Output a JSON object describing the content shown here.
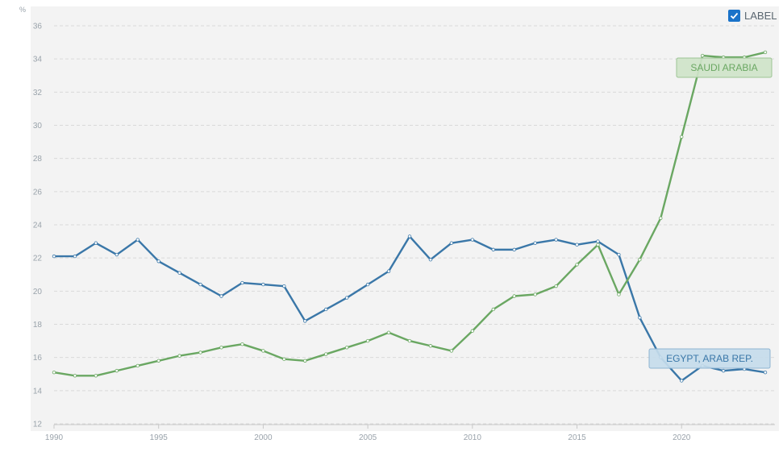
{
  "toggle": {
    "label": "LABEL",
    "checked": true
  },
  "chart_data": {
    "type": "line",
    "ylabel": "%",
    "ylim": [
      12,
      36
    ],
    "yticks": [
      12,
      14,
      16,
      18,
      20,
      22,
      24,
      26,
      28,
      30,
      32,
      34,
      36
    ],
    "xlim": [
      1990,
      2024
    ],
    "xticks": [
      1990,
      1995,
      2000,
      2005,
      2010,
      2015,
      2020
    ],
    "grid": true,
    "x": [
      1990,
      1991,
      1992,
      1993,
      1994,
      1995,
      1996,
      1997,
      1998,
      1999,
      2000,
      2001,
      2002,
      2003,
      2004,
      2005,
      2006,
      2007,
      2008,
      2009,
      2010,
      2011,
      2012,
      2013,
      2014,
      2015,
      2016,
      2017,
      2018,
      2019,
      2020,
      2021,
      2022,
      2023,
      2024
    ],
    "series": [
      {
        "name": "EGYPT, ARAB REP.",
        "color": "#3a77a8",
        "label_bg": "#c6dcec",
        "label_border": "#8fb4d2",
        "values": [
          22.1,
          22.1,
          22.9,
          22.2,
          23.1,
          21.8,
          21.1,
          20.4,
          19.7,
          20.5,
          20.4,
          20.3,
          18.2,
          18.9,
          19.6,
          20.4,
          21.2,
          23.3,
          21.9,
          22.9,
          23.1,
          22.5,
          22.5,
          22.9,
          23.1,
          22.8,
          23.0,
          22.2,
          18.4,
          16.0,
          14.6,
          15.5,
          15.2,
          15.3,
          15.1
        ]
      },
      {
        "name": "SAUDI ARABIA",
        "color": "#6aa762",
        "label_bg": "#cfe4c9",
        "label_border": "#9cc494",
        "values": [
          15.1,
          14.9,
          14.9,
          15.2,
          15.5,
          15.8,
          16.1,
          16.3,
          16.6,
          16.8,
          16.4,
          15.9,
          15.8,
          16.2,
          16.6,
          17.0,
          17.5,
          17.0,
          16.7,
          16.4,
          17.6,
          18.9,
          19.7,
          19.8,
          20.3,
          21.6,
          22.8,
          19.8,
          21.9,
          24.4,
          29.3,
          34.2,
          34.1,
          34.1,
          34.4
        ]
      }
    ]
  }
}
